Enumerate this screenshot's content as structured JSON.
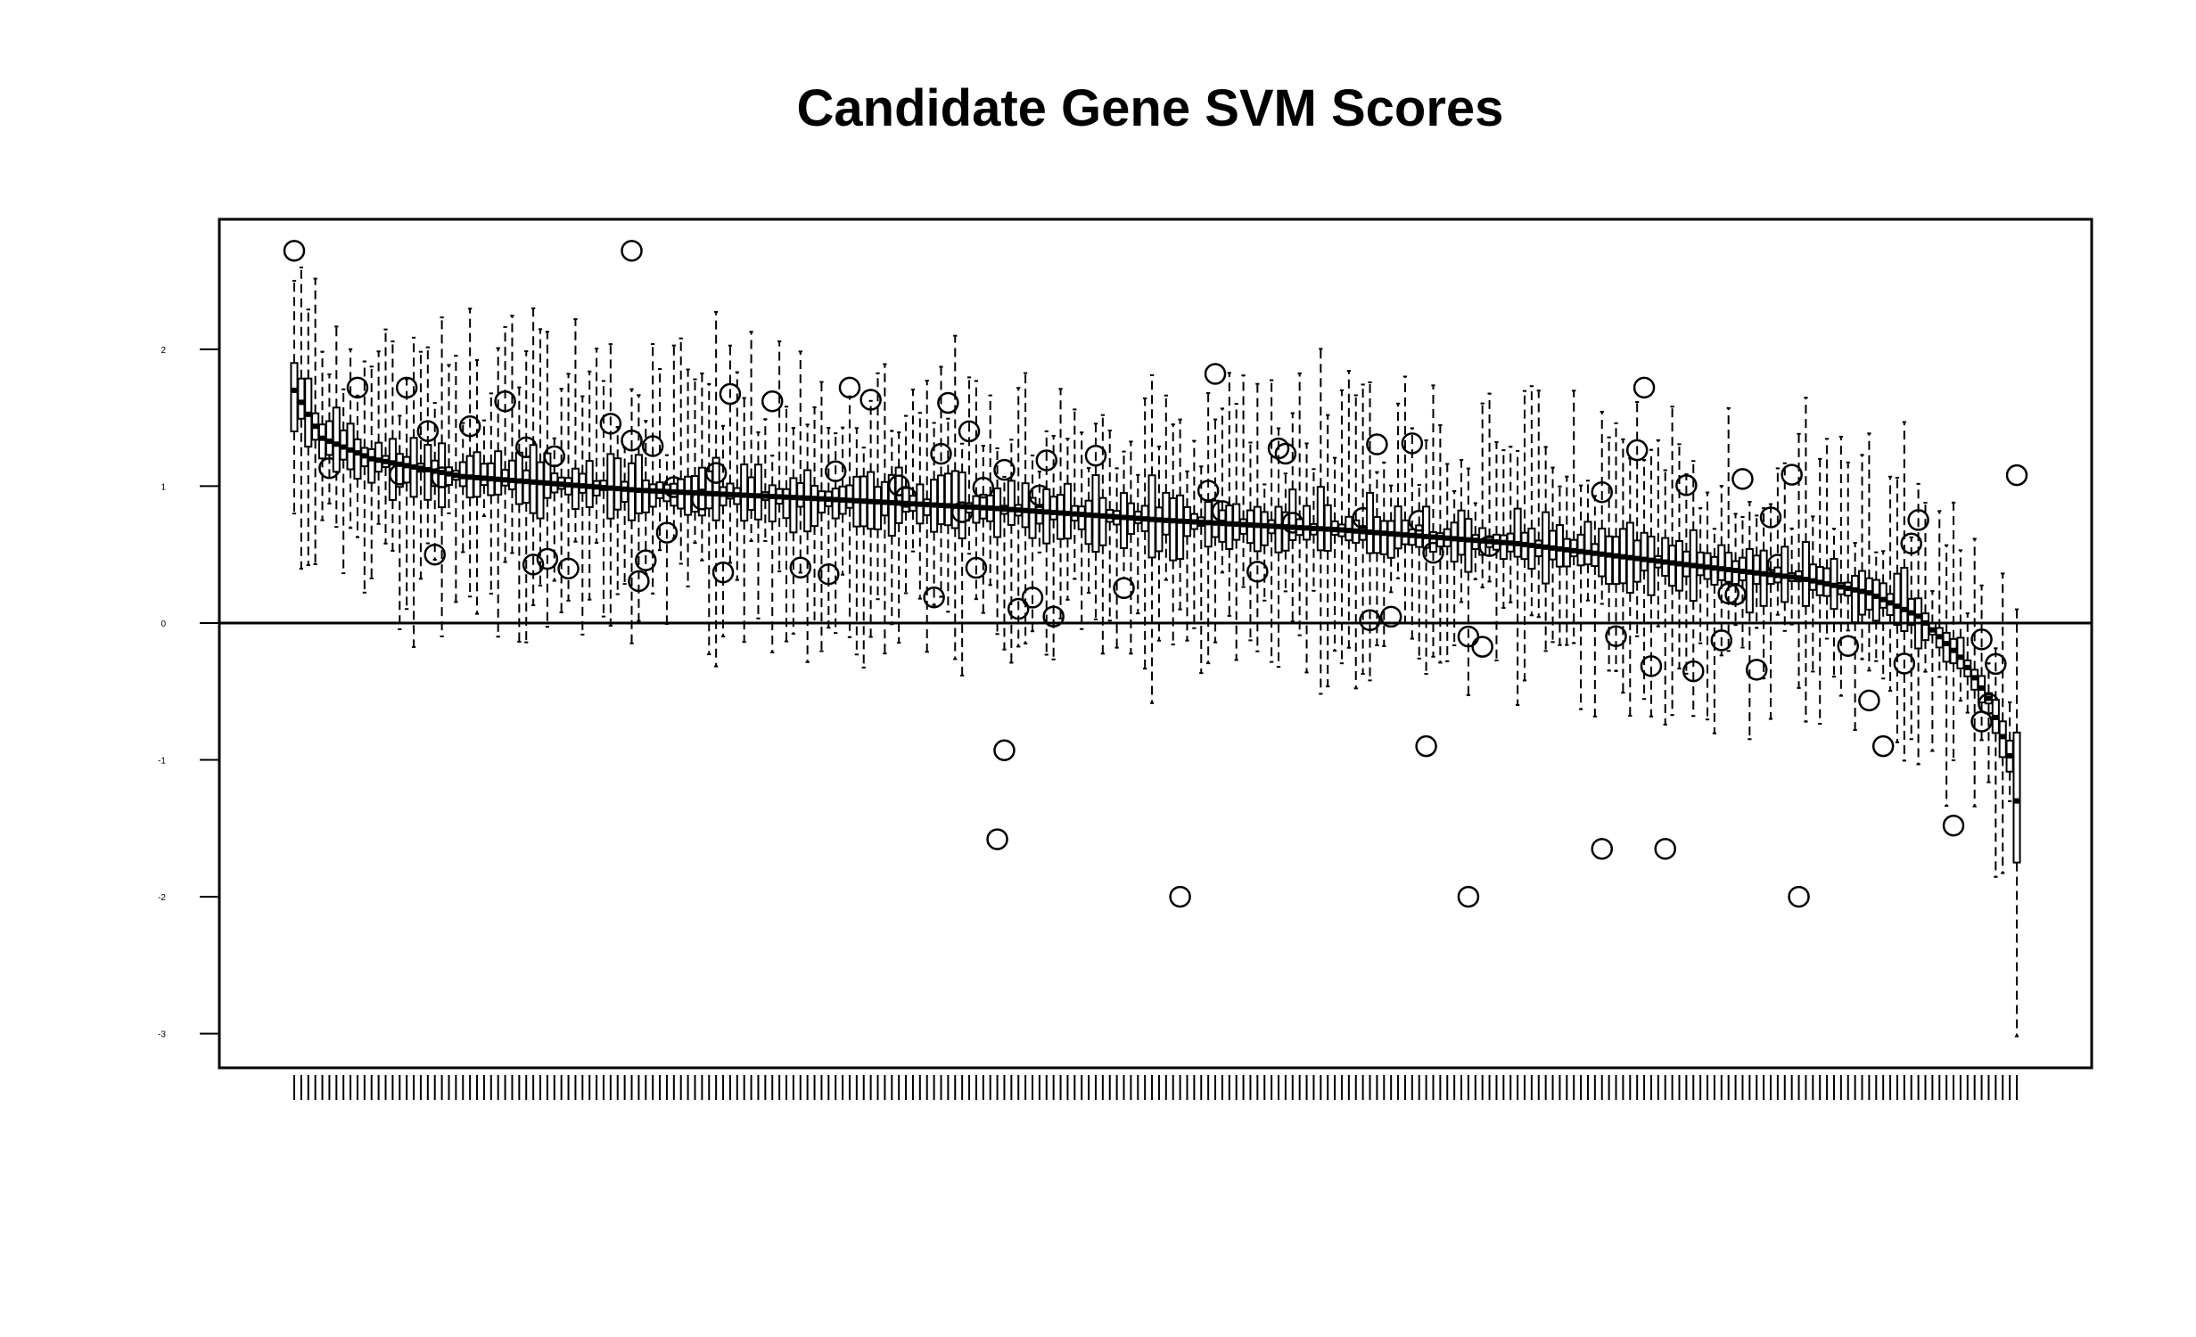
{
  "chart_data": {
    "type": "boxplot",
    "title": "Candidate Gene SVM Scores",
    "xlabel": "",
    "ylabel": "",
    "ylim": [
      -3.25,
      2.95
    ],
    "yticks": [
      -3,
      -2,
      -1,
      0,
      1,
      2
    ],
    "ytick_labels": [
      "-3",
      "-2",
      "-1",
      "0",
      "1",
      "2"
    ],
    "reference_line_y": 0,
    "grid": false,
    "n_boxes": 246,
    "ordering": "decreasing median",
    "summary_medians": [
      {
        "position": 1,
        "median": 1.7
      },
      {
        "position": 5,
        "median": 1.35
      },
      {
        "position": 12,
        "median": 1.2
      },
      {
        "position": 25,
        "median": 1.07
      },
      {
        "position": 50,
        "median": 0.97
      },
      {
        "position": 75,
        "median": 0.91
      },
      {
        "position": 100,
        "median": 0.84
      },
      {
        "position": 125,
        "median": 0.75
      },
      {
        "position": 150,
        "median": 0.68
      },
      {
        "position": 175,
        "median": 0.58
      },
      {
        "position": 200,
        "median": 0.42
      },
      {
        "position": 215,
        "median": 0.33
      },
      {
        "position": 225,
        "median": 0.22
      },
      {
        "position": 232,
        "median": 0.05
      },
      {
        "position": 238,
        "median": -0.25
      },
      {
        "position": 242,
        "median": -0.55
      },
      {
        "position": 245,
        "median": -0.97
      },
      {
        "position": 246,
        "median": -1.3
      }
    ],
    "notable_boxes": [
      {
        "position": 1,
        "lower_whisker": 0.8,
        "q1": 1.4,
        "median": 1.7,
        "q3": 1.9,
        "upper_whisker": 2.5,
        "outliers": [
          2.72
        ]
      },
      {
        "position": 246,
        "lower_whisker": -3.02,
        "q1": -1.75,
        "median": -1.3,
        "q3": -0.8,
        "upper_whisker": 0.1,
        "outliers": [
          1.08
        ]
      }
    ],
    "notable_outliers": [
      2.72,
      2.54,
      1.82,
      1.72,
      1.62,
      -0.12,
      -0.9,
      -0.93,
      -1.65,
      -2.0,
      -1.58,
      -1.48
    ]
  }
}
